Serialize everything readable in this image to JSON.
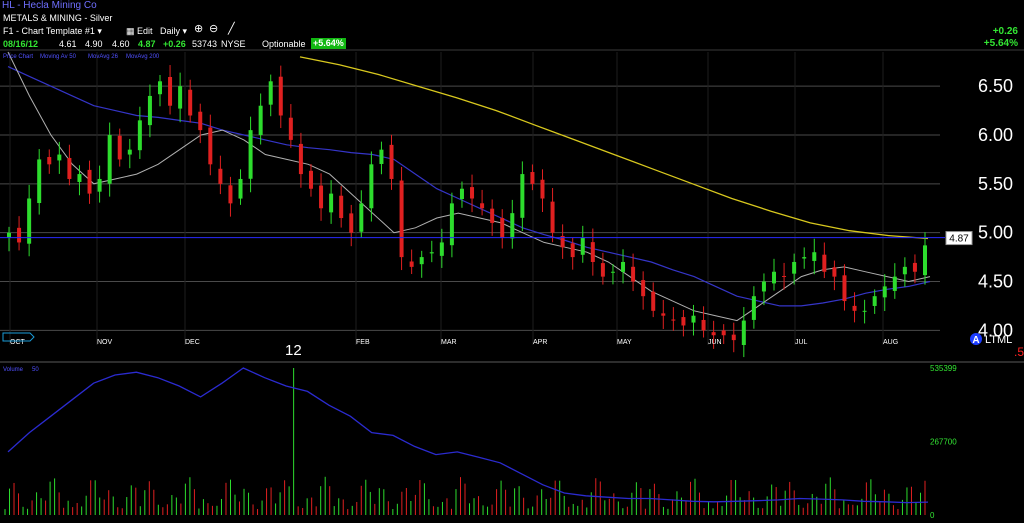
{
  "header": {
    "title": "HL - Hecla Mining Co",
    "sector": "METALS & MINING - Silver",
    "template": "F1 - Chart Template #1",
    "edit_label": "Edit",
    "period_label": "Daily",
    "date": "08/16/12",
    "open": "4.61",
    "high": "4.90",
    "low": "4.60",
    "close": "4.87",
    "change": "+0.26",
    "volume": "53743",
    "exchange": "NYSE",
    "optionable": "Optionable",
    "pct_badge": "+5.64%",
    "right_change": "+0.26",
    "right_pct": "+5.64%"
  },
  "price_pane": {
    "legend_price": "Price Chart",
    "legend_ma1": "Moving Av 50",
    "legend_ma2": "MovAvg 26",
    "legend_ma3": "MovAvg 200",
    "y_ticks": [
      "6.50",
      "6.00",
      "5.50",
      "5.00",
      "4.50",
      "4.00"
    ],
    "last_price": "4.87",
    "alert_letter": "A",
    "alert_text": "LTML",
    "alert_sub": ".5",
    "year_label": "12"
  },
  "volume_pane": {
    "legend": "Volume",
    "legend_ma": "50",
    "y_ticks": [
      "535399",
      "267700",
      "0"
    ]
  },
  "colors": {
    "up": "#2ddc2d",
    "down": "#e02020",
    "ma_short": "#b0b0b0",
    "ma_long": "#3535c8",
    "ma_200": "#d8c81e",
    "grid": "#4a4a4a",
    "axis_text": "#ffffff",
    "volume_avg": "#2b2bd0"
  },
  "chart_data": {
    "type": "line",
    "title": "HL - Hecla Mining Co",
    "x_labels": [
      "OCT",
      "NOV",
      "DEC",
      "12",
      "FEB",
      "MAR",
      "APR",
      "MAY",
      "JUN",
      "JUL",
      "AUG"
    ],
    "ylim": [
      3.85,
      6.85
    ],
    "y_ticks": [
      4.0,
      4.5,
      5.0,
      5.5,
      6.0,
      6.5
    ],
    "grid": true,
    "series": [
      {
        "name": "Price Chart",
        "kind": "candles",
        "close": [
          5.0,
          4.9,
          5.35,
          5.75,
          5.7,
          5.8,
          5.55,
          5.6,
          5.4,
          5.55,
          6.0,
          5.75,
          5.85,
          6.15,
          6.4,
          6.55,
          6.3,
          6.5,
          6.2,
          6.05,
          5.7,
          5.5,
          5.3,
          5.55,
          6.05,
          6.3,
          6.55,
          6.2,
          5.95,
          5.6,
          5.45,
          5.25,
          5.4,
          5.15,
          5.0,
          5.3,
          5.7,
          5.85,
          5.55,
          4.75,
          4.65,
          4.75,
          4.8,
          4.9,
          5.3,
          5.45,
          5.35,
          5.25,
          5.1,
          4.95,
          5.2,
          5.6,
          5.5,
          5.35,
          5.0,
          4.85,
          4.75,
          4.95,
          4.7,
          4.55,
          4.6,
          4.7,
          4.5,
          4.35,
          4.2,
          4.15,
          4.1,
          4.05,
          4.15,
          4.0,
          3.95,
          3.95,
          3.9,
          4.1,
          4.35,
          4.5,
          4.6,
          4.55,
          4.7,
          4.75,
          4.8,
          4.6,
          4.55,
          4.3,
          4.2,
          4.2,
          4.35,
          4.45,
          4.55,
          4.65,
          4.6,
          4.87
        ]
      },
      {
        "name": "Moving Av 50",
        "color": "#3535c8",
        "values": [
          6.7,
          6.6,
          6.5,
          6.4,
          6.3,
          6.25,
          6.2,
          6.18,
          6.15,
          6.12,
          6.05,
          6.0,
          5.95,
          5.9,
          5.87,
          5.85,
          5.82,
          5.8,
          5.75,
          5.6,
          5.45,
          5.35,
          5.25,
          5.15,
          5.05,
          4.98,
          4.92,
          4.85,
          4.8,
          4.75,
          4.7,
          4.62,
          4.55,
          4.45,
          4.35,
          4.3,
          4.25,
          4.25,
          4.28,
          4.32,
          4.38,
          4.42,
          4.45,
          4.5
        ]
      },
      {
        "name": "MovAvg 26",
        "color": "#b0b0b0",
        "values": [
          6.85,
          6.4,
          6.0,
          5.7,
          5.5,
          5.55,
          5.6,
          5.7,
          5.85,
          6.0,
          6.05,
          5.95,
          5.8,
          5.75,
          5.7,
          5.6,
          5.4,
          5.2,
          5.0,
          5.05,
          5.15,
          5.2,
          5.15,
          5.1,
          5.0,
          4.9,
          4.85,
          4.8,
          4.7,
          4.55,
          4.4,
          4.3,
          4.2,
          4.15,
          4.1,
          4.25,
          4.4,
          4.55,
          4.62,
          4.65,
          4.6,
          4.55,
          4.5,
          4.55
        ]
      },
      {
        "name": "MovAvg 200",
        "color": "#d8c81e",
        "values": [
          6.8,
          6.72,
          6.62,
          6.5,
          6.38,
          6.25,
          6.1,
          5.95,
          5.8,
          5.65,
          5.5,
          5.35,
          5.22,
          5.1,
          5.02,
          4.97,
          4.94
        ]
      }
    ],
    "volume": {
      "ylim": [
        0,
        535399
      ],
      "y_ticks": [
        0,
        267700,
        535399
      ],
      "average": [
        230000,
        300000,
        360000,
        420000,
        480000,
        510000,
        520000,
        500000,
        470000,
        430000,
        480000,
        535399,
        500000,
        470000,
        450000,
        400000,
        360000,
        300000,
        290000,
        250000,
        220000,
        230000,
        210000,
        190000,
        150000,
        110000,
        80000,
        70000,
        65000,
        60000,
        60000,
        55000,
        50000,
        48000,
        50000,
        52000,
        55000,
        60000,
        58000,
        55000,
        50000,
        48000,
        45000,
        47000
      ]
    }
  }
}
